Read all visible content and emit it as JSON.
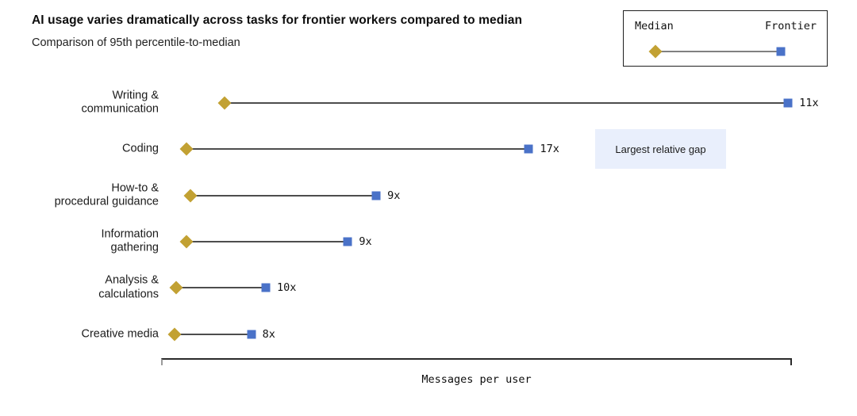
{
  "chart_data": {
    "type": "dumbbell",
    "title": "AI usage varies dramatically across tasks for frontier workers compared to median",
    "subtitle": "Comparison of 95th percentile-to-median",
    "xlabel": "Messages per user",
    "legend": {
      "position": "top-right",
      "items": [
        {
          "name": "Median",
          "marker": "diamond",
          "color": "#C2A133"
        },
        {
          "name": "Frontier",
          "marker": "square",
          "color": "#4A72C8"
        }
      ]
    },
    "axis": {
      "x_ticks": [],
      "x_pos_range": [
        0,
        100
      ]
    },
    "rows": [
      {
        "label": "Writing &\ncommunication",
        "value": "11x",
        "median_pos": 10.0,
        "frontier_pos": 99.4
      },
      {
        "label": "Coding",
        "value": "17x",
        "median_pos": 4.0,
        "frontier_pos": 58.3
      },
      {
        "label": "How-to &\nprocedural guidance",
        "value": "9x",
        "median_pos": 4.6,
        "frontier_pos": 34.1
      },
      {
        "label": "Information\ngathering",
        "value": "9x",
        "median_pos": 4.0,
        "frontier_pos": 29.6
      },
      {
        "label": "Analysis &\ncalculations",
        "value": "10x",
        "median_pos": 2.4,
        "frontier_pos": 16.6
      },
      {
        "label": "Creative media",
        "value": "8x",
        "median_pos": 2.1,
        "frontier_pos": 14.3
      }
    ],
    "annotation": {
      "text": "Largest relative gap"
    },
    "colors": {
      "median": "#C2A133",
      "frontier": "#4A72C8",
      "connector": "#4d4d4d",
      "legend_line": "#808080",
      "annotation_bg": "#E9EFFC"
    }
  }
}
